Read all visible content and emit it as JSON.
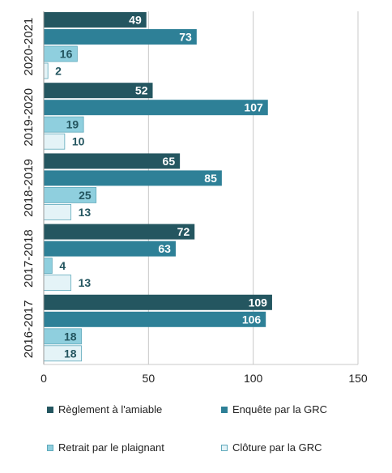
{
  "chart_data": {
    "type": "bar",
    "orientation": "horizontal",
    "categories": [
      "2020-2021",
      "2019-2020",
      "2018-2019",
      "2017-2018",
      "2016-2017"
    ],
    "series": [
      {
        "name": "Règlement à l'amiable",
        "values": [
          49,
          52,
          65,
          72,
          109
        ],
        "color": "#245660",
        "label_color": "#ffffff"
      },
      {
        "name": "Enquête par la GRC",
        "values": [
          73,
          107,
          85,
          63,
          106
        ],
        "color": "#2e8097",
        "label_color": "#ffffff"
      },
      {
        "name": "Retrait par le plaignant",
        "values": [
          16,
          19,
          25,
          4,
          18
        ],
        "color": "#8fcfde",
        "label_color": "#245660"
      },
      {
        "name": "Clôture par la GRC",
        "values": [
          2,
          10,
          13,
          13,
          18
        ],
        "color": "#e4f3f7",
        "label_color": "#245660"
      }
    ],
    "x_ticks": [
      "0",
      "50",
      "100",
      "150"
    ],
    "xlim": [
      0,
      150
    ],
    "grid": true,
    "legend_position": "bottom",
    "data_labels": true
  }
}
